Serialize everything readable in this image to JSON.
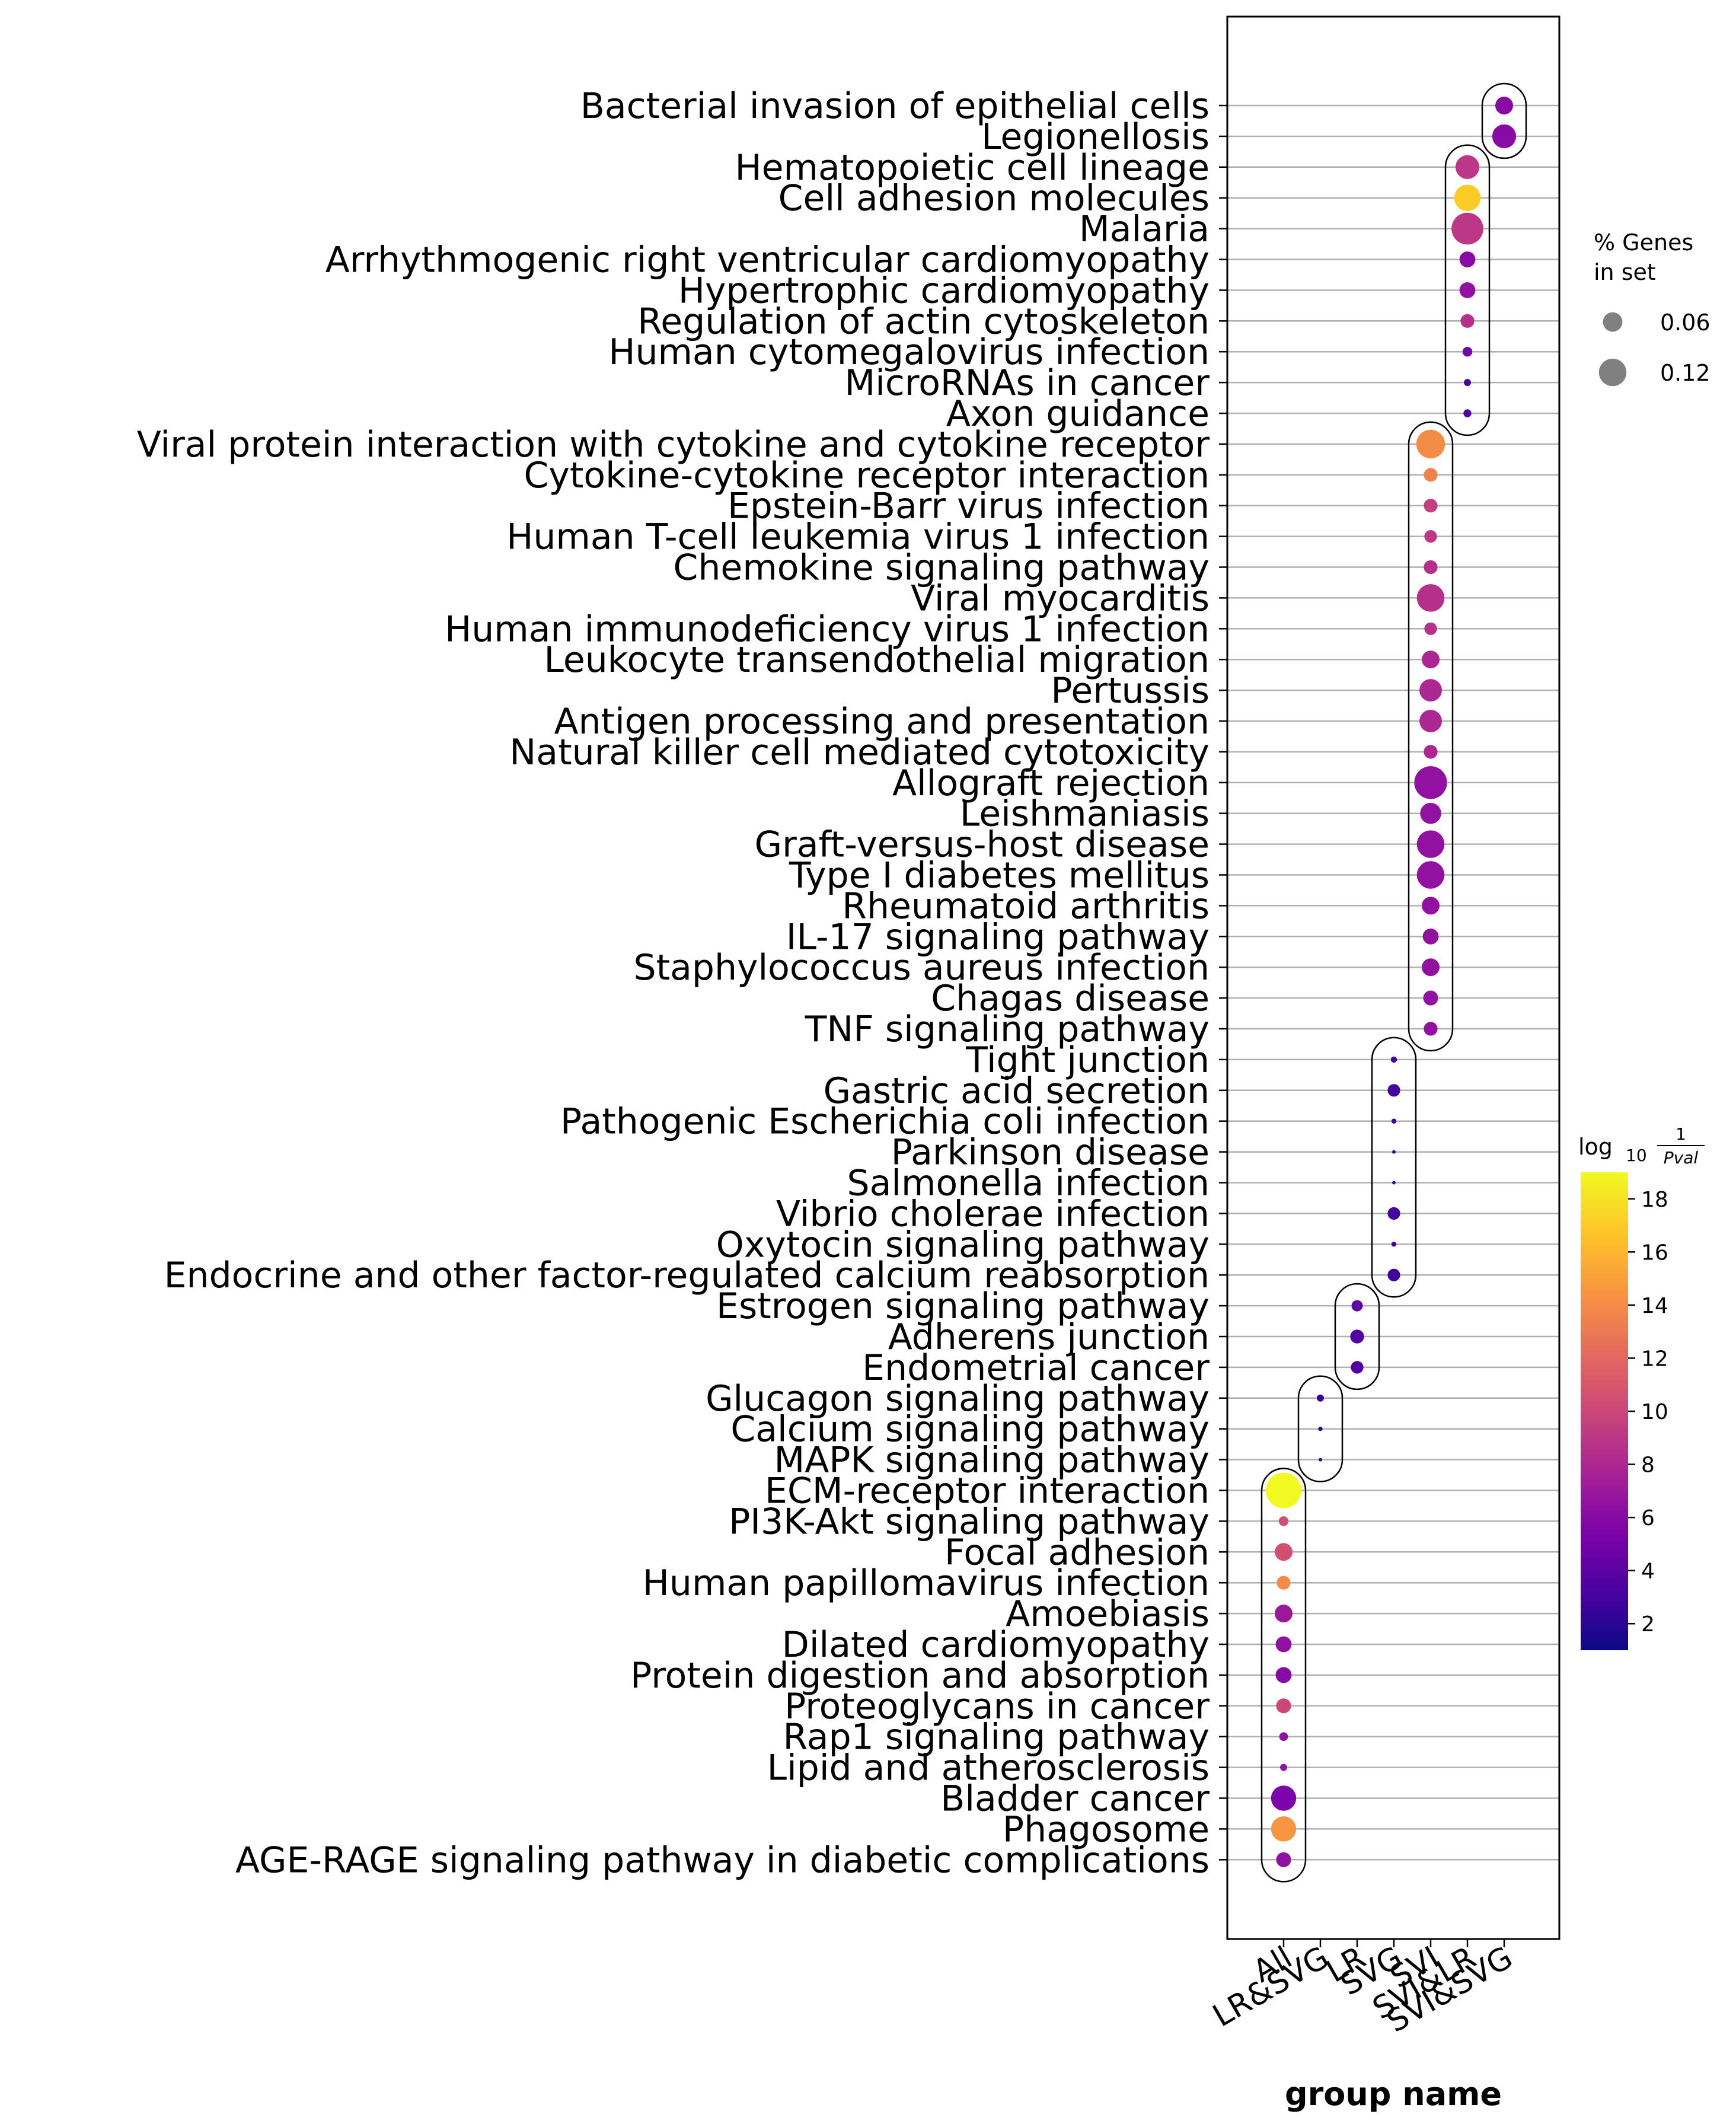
{
  "chart_data": {
    "type": "scatter",
    "xlabel": "group name",
    "groups": [
      "All",
      "LR&SVG",
      "LR",
      "SVG",
      "SVI",
      "SVI&LR",
      "SVI&SVG"
    ],
    "size_legend": {
      "title_lines": [
        "% Genes",
        "in set"
      ],
      "entries": [
        {
          "label": "0.06",
          "value": 0.06
        },
        {
          "label": "0.12",
          "value": 0.12
        }
      ]
    },
    "colorbar": {
      "title": "log10 1/Pval",
      "title_main": "log",
      "title_sub": "10",
      "title_num": "1",
      "title_den": "Pval",
      "colormap": "plasma",
      "range": [
        1,
        19
      ],
      "ticks": [
        "2",
        "4",
        "6",
        "8",
        "10",
        "12",
        "14",
        "16",
        "18"
      ]
    },
    "points": [
      {
        "term": "Bacterial invasion of epithelial cells",
        "group": "SVI&SVG",
        "size": 0.05,
        "color": 6
      },
      {
        "term": "Legionellosis",
        "group": "SVI&SVG",
        "size": 0.09,
        "color": 6
      },
      {
        "term": "Hematopoietic cell lineage",
        "group": "SVI&LR",
        "size": 0.09,
        "color": 9
      },
      {
        "term": "Cell adhesion molecules",
        "group": "SVI&LR",
        "size": 0.11,
        "color": 17
      },
      {
        "term": "Malaria",
        "group": "SVI&LR",
        "size": 0.16,
        "color": 9
      },
      {
        "term": "Arrhythmogenic right ventricular cardiomyopathy",
        "group": "SVI&LR",
        "size": 0.04,
        "color": 6
      },
      {
        "term": "Hypertrophic cardiomyopathy",
        "group": "SVI&LR",
        "size": 0.04,
        "color": 6.5
      },
      {
        "term": "Regulation of actin cytoskeleton",
        "group": "SVI&LR",
        "size": 0.03,
        "color": 8.5
      },
      {
        "term": "Human cytomegalovirus infection",
        "group": "SVI&LR",
        "size": 0.015,
        "color": 5
      },
      {
        "term": "MicroRNAs in cancer",
        "group": "SVI&LR",
        "size": 0.008,
        "color": 3
      },
      {
        "term": "Axon guidance",
        "group": "SVI&LR",
        "size": 0.01,
        "color": 3.5
      },
      {
        "term": "Viral protein interaction with cytokine and cytokine receptor",
        "group": "SVI",
        "size": 0.13,
        "color": 14
      },
      {
        "term": "Cytokine-cytokine receptor interaction",
        "group": "SVI",
        "size": 0.03,
        "color": 13.5
      },
      {
        "term": "Epstein-Barr virus infection",
        "group": "SVI",
        "size": 0.03,
        "color": 9.5
      },
      {
        "term": "Human T-cell leukemia virus 1 infection",
        "group": "SVI",
        "size": 0.025,
        "color": 9
      },
      {
        "term": "Chemokine signaling pathway",
        "group": "SVI",
        "size": 0.03,
        "color": 8.5
      },
      {
        "term": "Viral myocarditis",
        "group": "SVI",
        "size": 0.12,
        "color": 8.5
      },
      {
        "term": "Human immunodeficiency virus 1 infection",
        "group": "SVI",
        "size": 0.025,
        "color": 8.5
      },
      {
        "term": "Leukocyte transendothelial migration",
        "group": "SVI",
        "size": 0.05,
        "color": 8
      },
      {
        "term": "Pertussis",
        "group": "SVI",
        "size": 0.08,
        "color": 8
      },
      {
        "term": "Antigen processing and presentation",
        "group": "SVI",
        "size": 0.08,
        "color": 8
      },
      {
        "term": "Natural killer cell mediated cytotoxicity",
        "group": "SVI",
        "size": 0.03,
        "color": 8
      },
      {
        "term": "Allograft rejection",
        "group": "SVI",
        "size": 0.17,
        "color": 6.5
      },
      {
        "term": "Leishmaniasis",
        "group": "SVI",
        "size": 0.07,
        "color": 6.5
      },
      {
        "term": "Graft-versus-host disease",
        "group": "SVI",
        "size": 0.12,
        "color": 6.5
      },
      {
        "term": "Type I diabetes mellitus",
        "group": "SVI",
        "size": 0.12,
        "color": 6.5
      },
      {
        "term": "Rheumatoid arthritis",
        "group": "SVI",
        "size": 0.05,
        "color": 6.5
      },
      {
        "term": "IL-17 signaling pathway",
        "group": "SVI",
        "size": 0.04,
        "color": 6.5
      },
      {
        "term": "Staphylococcus aureus infection",
        "group": "SVI",
        "size": 0.05,
        "color": 6.5
      },
      {
        "term": "Chagas disease",
        "group": "SVI",
        "size": 0.035,
        "color": 6.5
      },
      {
        "term": "TNF signaling pathway",
        "group": "SVI",
        "size": 0.03,
        "color": 6.5
      },
      {
        "term": "Tight junction",
        "group": "SVG",
        "size": 0.006,
        "color": 3
      },
      {
        "term": "Gastric acid secretion",
        "group": "SVG",
        "size": 0.025,
        "color": 3
      },
      {
        "term": "Pathogenic Escherichia coli infection",
        "group": "SVG",
        "size": 0.004,
        "color": 2.5
      },
      {
        "term": "Parkinson disease",
        "group": "SVG",
        "size": 0.002,
        "color": 2.5
      },
      {
        "term": "Salmonella infection",
        "group": "SVG",
        "size": 0.002,
        "color": 2.5
      },
      {
        "term": "Vibrio cholerae infection",
        "group": "SVG",
        "size": 0.025,
        "color": 3
      },
      {
        "term": "Oxytocin signaling pathway",
        "group": "SVG",
        "size": 0.004,
        "color": 3
      },
      {
        "term": "Endocrine and other factor-regulated calcium reabsorption",
        "group": "SVG",
        "size": 0.025,
        "color": 3
      },
      {
        "term": "Estrogen signaling pathway",
        "group": "LR",
        "size": 0.02,
        "color": 4
      },
      {
        "term": "Adherens junction",
        "group": "LR",
        "size": 0.03,
        "color": 3.5
      },
      {
        "term": "Endometrial cancer",
        "group": "LR",
        "size": 0.025,
        "color": 3.5
      },
      {
        "term": "Glucagon signaling pathway",
        "group": "LR&SVG",
        "size": 0.008,
        "color": 2.5
      },
      {
        "term": "Calcium signaling pathway",
        "group": "LR&SVG",
        "size": 0.003,
        "color": 2
      },
      {
        "term": "MAPK signaling pathway",
        "group": "LR&SVG",
        "size": 0.002,
        "color": 2
      },
      {
        "term": "ECM-receptor interaction",
        "group": "All",
        "size": 0.2,
        "color": 19
      },
      {
        "term": "PI3K-Akt signaling pathway",
        "group": "All",
        "size": 0.015,
        "color": 10.5
      },
      {
        "term": "Focal adhesion",
        "group": "All",
        "size": 0.05,
        "color": 10.5
      },
      {
        "term": "Human papillomavirus infection",
        "group": "All",
        "size": 0.03,
        "color": 14
      },
      {
        "term": "Amoebiasis",
        "group": "All",
        "size": 0.05,
        "color": 7
      },
      {
        "term": "Dilated cardiomyopathy",
        "group": "All",
        "size": 0.04,
        "color": 6.5
      },
      {
        "term": "Protein digestion and absorption",
        "group": "All",
        "size": 0.04,
        "color": 6
      },
      {
        "term": "Proteoglycans in cancer",
        "group": "All",
        "size": 0.035,
        "color": 10
      },
      {
        "term": "Rap1 signaling pathway",
        "group": "All",
        "size": 0.012,
        "color": 6.5
      },
      {
        "term": "Lipid and atherosclerosis",
        "group": "All",
        "size": 0.008,
        "color": 6.5
      },
      {
        "term": "Bladder cancer",
        "group": "All",
        "size": 0.1,
        "color": 5.5
      },
      {
        "term": "Phagosome",
        "group": "All",
        "size": 0.1,
        "color": 14.5
      },
      {
        "term": "AGE-RAGE signaling pathway in diabetic complications",
        "group": "All",
        "size": 0.035,
        "color": 6.5
      }
    ]
  }
}
